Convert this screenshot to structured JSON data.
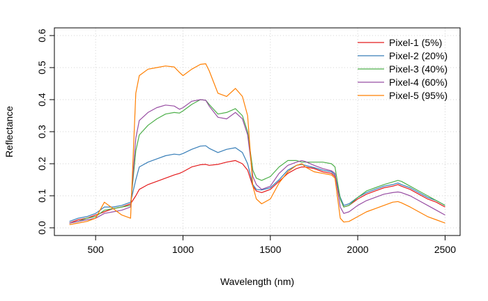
{
  "chart_data": {
    "type": "line",
    "xlabel": "Wavelength (nm)",
    "ylabel": "Reflectance",
    "xlim": [
      350,
      2500
    ],
    "ylim": [
      0,
      0.6
    ],
    "xticks": [
      500,
      1000,
      1500,
      2000,
      2500
    ],
    "yticks": [
      0.0,
      0.1,
      0.2,
      0.3,
      0.4,
      0.5,
      0.6
    ],
    "xtick_labels": [
      "500",
      "1000",
      "1500",
      "2000",
      "2500"
    ],
    "ytick_labels": [
      "0.0",
      "0.1",
      "0.2",
      "0.3",
      "0.4",
      "0.5",
      "0.6"
    ],
    "grid": true,
    "legend_position": "top-right",
    "x": [
      350,
      400,
      450,
      500,
      550,
      600,
      650,
      700,
      730,
      750,
      800,
      850,
      900,
      950,
      980,
      1000,
      1050,
      1100,
      1130,
      1150,
      1200,
      1250,
      1300,
      1340,
      1370,
      1400,
      1420,
      1450,
      1500,
      1550,
      1600,
      1650,
      1680,
      1700,
      1750,
      1800,
      1850,
      1870,
      1900,
      1920,
      1950,
      2000,
      2050,
      2100,
      2150,
      2200,
      2230,
      2250,
      2300,
      2350,
      2400,
      2450,
      2500
    ],
    "series": [
      {
        "name": "Pixel-1 (5%)",
        "color": "#e41a1c",
        "values": [
          0.015,
          0.025,
          0.03,
          0.04,
          0.05,
          0.06,
          0.065,
          0.075,
          0.1,
          0.12,
          0.135,
          0.145,
          0.155,
          0.165,
          0.17,
          0.175,
          0.19,
          0.197,
          0.198,
          0.195,
          0.198,
          0.205,
          0.21,
          0.2,
          0.18,
          0.13,
          0.115,
          0.11,
          0.12,
          0.145,
          0.17,
          0.185,
          0.19,
          0.19,
          0.185,
          0.175,
          0.17,
          0.16,
          0.09,
          0.065,
          0.07,
          0.09,
          0.105,
          0.115,
          0.125,
          0.13,
          0.135,
          0.13,
          0.12,
          0.105,
          0.09,
          0.08,
          0.065
        ]
      },
      {
        "name": "Pixel-2 (20%)",
        "color": "#377eb8",
        "values": [
          0.02,
          0.03,
          0.035,
          0.045,
          0.065,
          0.065,
          0.07,
          0.08,
          0.15,
          0.19,
          0.205,
          0.215,
          0.225,
          0.23,
          0.228,
          0.232,
          0.245,
          0.255,
          0.256,
          0.248,
          0.235,
          0.245,
          0.25,
          0.235,
          0.2,
          0.135,
          0.12,
          0.118,
          0.125,
          0.15,
          0.18,
          0.195,
          0.198,
          0.195,
          0.188,
          0.18,
          0.175,
          0.165,
          0.095,
          0.07,
          0.075,
          0.095,
          0.11,
          0.12,
          0.13,
          0.135,
          0.14,
          0.135,
          0.125,
          0.11,
          0.095,
          0.085,
          0.07
        ]
      },
      {
        "name": "Pixel-3 (40%)",
        "color": "#4daf4a",
        "values": [
          0.015,
          0.02,
          0.03,
          0.035,
          0.055,
          0.06,
          0.065,
          0.07,
          0.24,
          0.29,
          0.32,
          0.34,
          0.355,
          0.36,
          0.358,
          0.365,
          0.385,
          0.4,
          0.398,
          0.385,
          0.355,
          0.36,
          0.372,
          0.35,
          0.3,
          0.18,
          0.155,
          0.148,
          0.16,
          0.19,
          0.21,
          0.21,
          0.205,
          0.205,
          0.205,
          0.205,
          0.2,
          0.19,
          0.09,
          0.065,
          0.07,
          0.095,
          0.115,
          0.125,
          0.135,
          0.143,
          0.148,
          0.145,
          0.13,
          0.115,
          0.1,
          0.085,
          0.07
        ]
      },
      {
        "name": "Pixel-4 (60%)",
        "color": "#984ea3",
        "values": [
          0.015,
          0.02,
          0.025,
          0.03,
          0.045,
          0.05,
          0.055,
          0.065,
          0.28,
          0.335,
          0.36,
          0.375,
          0.383,
          0.38,
          0.37,
          0.375,
          0.395,
          0.4,
          0.398,
          0.38,
          0.345,
          0.34,
          0.36,
          0.34,
          0.29,
          0.16,
          0.135,
          0.12,
          0.13,
          0.17,
          0.195,
          0.205,
          0.21,
          0.207,
          0.195,
          0.185,
          0.178,
          0.17,
          0.065,
          0.045,
          0.05,
          0.07,
          0.085,
          0.095,
          0.105,
          0.11,
          0.112,
          0.11,
          0.1,
          0.085,
          0.07,
          0.055,
          0.04
        ]
      },
      {
        "name": "Pixel-5 (95%)",
        "color": "#ff7f00",
        "values": [
          0.01,
          0.015,
          0.02,
          0.03,
          0.08,
          0.06,
          0.04,
          0.03,
          0.42,
          0.475,
          0.495,
          0.5,
          0.505,
          0.502,
          0.485,
          0.475,
          0.495,
          0.51,
          0.512,
          0.49,
          0.42,
          0.41,
          0.435,
          0.41,
          0.35,
          0.13,
          0.09,
          0.075,
          0.09,
          0.14,
          0.175,
          0.195,
          0.2,
          0.19,
          0.175,
          0.17,
          0.165,
          0.155,
          0.03,
          0.018,
          0.02,
          0.035,
          0.05,
          0.06,
          0.07,
          0.08,
          0.082,
          0.078,
          0.065,
          0.05,
          0.035,
          0.025,
          0.015
        ]
      }
    ]
  }
}
